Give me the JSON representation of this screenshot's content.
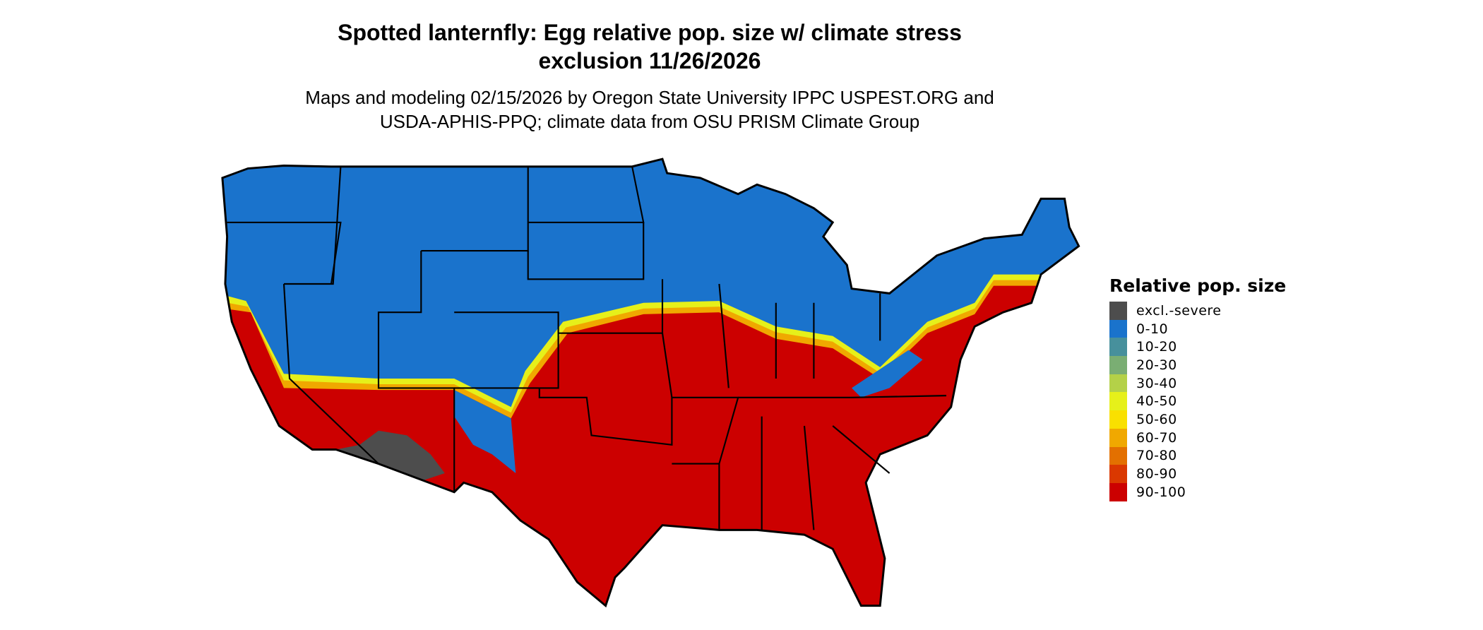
{
  "title": {
    "line1": "Spotted lanternfly: Egg relative pop. size w/ climate stress",
    "line2": "exclusion 11/26/2026"
  },
  "subtitle": {
    "line1": "Maps and modeling 02/15/2026 by Oregon State University IPPC USPEST.ORG and",
    "line2": "USDA-APHIS-PPQ; climate data from OSU PRISM Climate Group"
  },
  "map": {
    "region": "Contiguous United States",
    "dominant_north": "0-10",
    "dominant_south": "90-100",
    "excluded_area": "excl.-severe"
  },
  "legend": {
    "title": "Relative pop. size",
    "items": [
      {
        "label": "excl.-severe",
        "color": "#4d4d4d"
      },
      {
        "label": "0-10",
        "color": "#1a73cc"
      },
      {
        "label": "10-20",
        "color": "#47909c"
      },
      {
        "label": "20-30",
        "color": "#7aae73"
      },
      {
        "label": "30-40",
        "color": "#b4d148"
      },
      {
        "label": "40-50",
        "color": "#e6f01a"
      },
      {
        "label": "50-60",
        "color": "#f9e000"
      },
      {
        "label": "60-70",
        "color": "#f0a800"
      },
      {
        "label": "70-80",
        "color": "#e37000"
      },
      {
        "label": "80-90",
        "color": "#da3800"
      },
      {
        "label": "90-100",
        "color": "#cc0000"
      }
    ]
  }
}
